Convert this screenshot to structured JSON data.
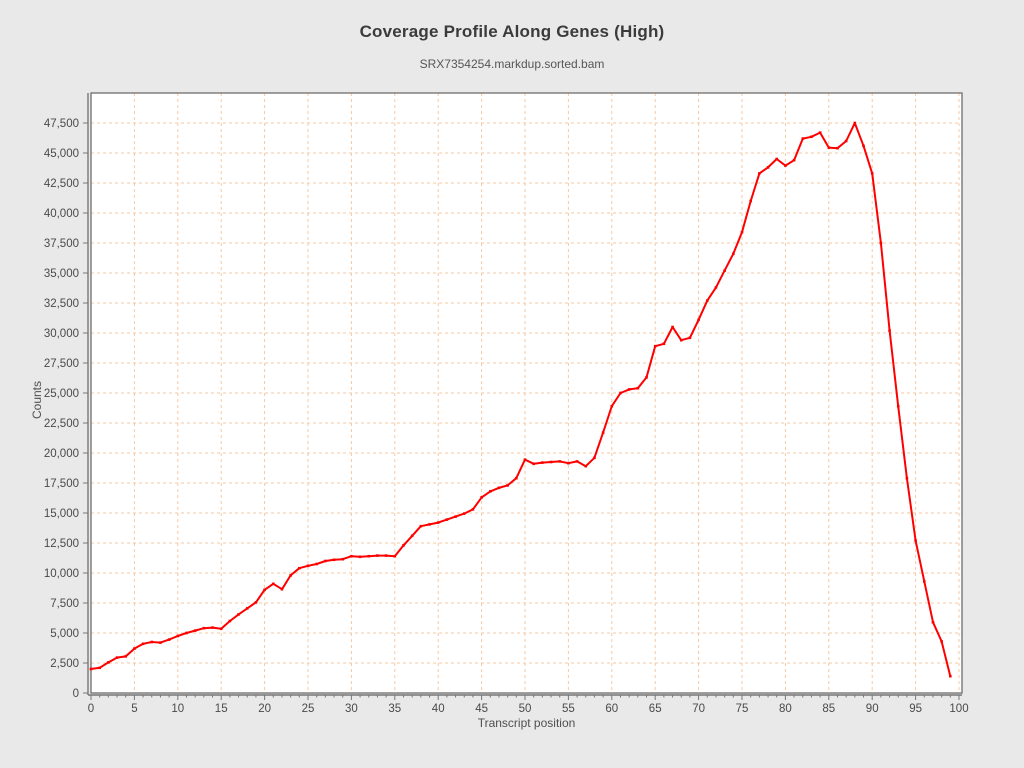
{
  "chart_data": {
    "type": "line",
    "title": "Coverage Profile Along Genes (High)",
    "subtitle": "SRX7354254.markdup.sorted.bam",
    "xlabel": "Transcript position",
    "ylabel": "Counts",
    "xlim": [
      0,
      100
    ],
    "ylim": [
      0,
      50000
    ],
    "x_tick_step": 5,
    "x_minor_tick_step": 1,
    "y_tick_step": 2500,
    "y_max_labeled_tick": 47500,
    "grid": true,
    "grid_style": "dashed",
    "legend_position": "none",
    "series": [
      {
        "name": "SRX7354254.markdup.sorted.bam",
        "color": "#ff0000",
        "x_start": 0,
        "x_step": 1,
        "values": [
          2000,
          2100,
          2550,
          2950,
          3050,
          3700,
          4100,
          4250,
          4200,
          4450,
          4750,
          5000,
          5200,
          5400,
          5450,
          5350,
          6000,
          6550,
          7050,
          7550,
          8600,
          9100,
          8650,
          9800,
          10400,
          10600,
          10750,
          11000,
          11100,
          11150,
          11400,
          11350,
          11400,
          11450,
          11450,
          11400,
          12300,
          13100,
          13900,
          14050,
          14200,
          14450,
          14700,
          14950,
          15300,
          16300,
          16800,
          17100,
          17300,
          17900,
          19450,
          19100,
          19200,
          19250,
          19300,
          19150,
          19300,
          18900,
          19600,
          21700,
          23900,
          25000,
          25300,
          25400,
          26300,
          28900,
          29100,
          30500,
          29400,
          29600,
          31100,
          32700,
          33800,
          35200,
          36600,
          38400,
          41000,
          43300,
          43800,
          44500,
          43950,
          44400,
          46200,
          46350,
          46700,
          45450,
          45400,
          46000,
          47500,
          45600,
          43300,
          37500,
          30200,
          23900,
          17900,
          12700,
          9300,
          5900,
          4300,
          1400
        ]
      }
    ],
    "colors": {
      "line": "#ff0000",
      "grid": "#f5c9a3",
      "plot_background": "#ffffff",
      "figure_background": "#e9e9e9",
      "axis": "#777777",
      "tick_label": "#4a4a4a",
      "title": "#3b3b3b",
      "subtitle": "#565656"
    }
  }
}
